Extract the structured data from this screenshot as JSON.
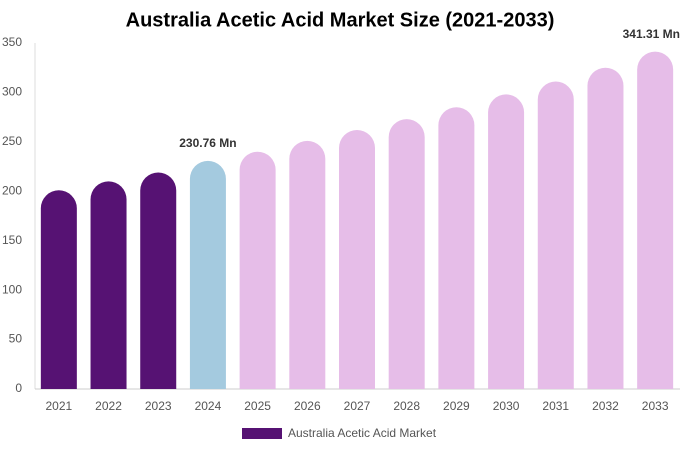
{
  "chart_data": {
    "type": "bar",
    "title": "Australia Acetic Acid Market Size (2021-2033)",
    "categories": [
      "2021",
      "2022",
      "2023",
      "2024",
      "2025",
      "2026",
      "2027",
      "2028",
      "2029",
      "2030",
      "2031",
      "2032",
      "2033"
    ],
    "series": [
      {
        "name": "Australia Acetic Acid Market",
        "color": "#561273",
        "colors": [
          "#561273",
          "#561273",
          "#561273",
          "#a4cadf",
          "#e6bde8",
          "#e6bde8",
          "#e6bde8",
          "#e6bde8",
          "#e6bde8",
          "#e6bde8",
          "#e6bde8",
          "#e6bde8",
          "#e6bde8"
        ],
        "values": [
          201,
          210,
          219,
          230.76,
          240,
          251,
          262,
          273,
          285,
          298,
          311,
          325,
          341.31
        ],
        "value_labels": [
          null,
          null,
          null,
          "230.76 Mn",
          null,
          null,
          null,
          null,
          null,
          null,
          null,
          null,
          "341.31 Mn"
        ]
      }
    ],
    "ylim": [
      0,
      350
    ],
    "yticks": [
      0,
      50,
      100,
      150,
      200,
      250,
      300,
      350
    ],
    "grid": false
  }
}
